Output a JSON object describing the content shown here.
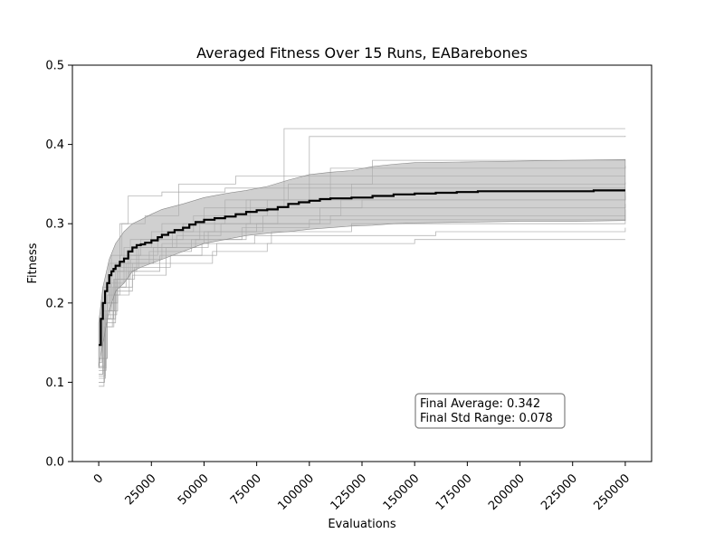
{
  "chart_data": {
    "type": "line",
    "title": "Averaged Fitness Over 15 Runs, EABarebones",
    "xlabel": "Evaluations",
    "ylabel": "Fitness",
    "xlim": [
      -12500,
      262500
    ],
    "ylim": [
      0.0,
      0.5
    ],
    "xticks": [
      0,
      25000,
      50000,
      75000,
      100000,
      125000,
      150000,
      175000,
      200000,
      225000,
      250000
    ],
    "xtick_labels": [
      "0",
      "25000",
      "50000",
      "75000",
      "100000",
      "125000",
      "150000",
      "175000",
      "200000",
      "225000",
      "250000"
    ],
    "yticks": [
      0.0,
      0.1,
      0.2,
      0.3,
      0.4,
      0.5
    ],
    "ytick_labels": [
      "0.0",
      "0.1",
      "0.2",
      "0.3",
      "0.4",
      "0.5"
    ],
    "grid": false,
    "colors": {
      "average": "#000000",
      "band": "#b0b0b0",
      "runs": "#9e9e9e"
    },
    "average": {
      "x": [
        0,
        1000,
        2000,
        3000,
        4000,
        5000,
        6000,
        7000,
        8000,
        10000,
        12000,
        14000,
        16000,
        18000,
        20000,
        22000,
        25000,
        28000,
        30000,
        33000,
        36000,
        40000,
        43000,
        46000,
        50000,
        55000,
        60000,
        65000,
        70000,
        75000,
        80000,
        85000,
        90000,
        95000,
        100000,
        105000,
        110000,
        120000,
        130000,
        140000,
        150000,
        160000,
        170000,
        180000,
        200000,
        220000,
        235000,
        250000
      ],
      "y": [
        0.147,
        0.18,
        0.2,
        0.215,
        0.225,
        0.235,
        0.24,
        0.243,
        0.247,
        0.252,
        0.256,
        0.265,
        0.27,
        0.273,
        0.274,
        0.276,
        0.279,
        0.283,
        0.286,
        0.289,
        0.292,
        0.295,
        0.299,
        0.302,
        0.305,
        0.307,
        0.309,
        0.312,
        0.315,
        0.317,
        0.318,
        0.321,
        0.325,
        0.327,
        0.329,
        0.331,
        0.332,
        0.333,
        0.335,
        0.337,
        0.338,
        0.339,
        0.34,
        0.341,
        0.341,
        0.341,
        0.342,
        0.342
      ]
    },
    "band": {
      "x": [
        0,
        2000,
        5000,
        8000,
        12000,
        16000,
        20000,
        25000,
        30000,
        40000,
        50000,
        60000,
        70000,
        80000,
        90000,
        100000,
        110000,
        120000,
        130000,
        140000,
        150000,
        175000,
        200000,
        225000,
        250000
      ],
      "upper": [
        0.175,
        0.22,
        0.255,
        0.275,
        0.29,
        0.3,
        0.305,
        0.312,
        0.318,
        0.325,
        0.333,
        0.338,
        0.342,
        0.347,
        0.355,
        0.362,
        0.365,
        0.367,
        0.372,
        0.375,
        0.377,
        0.378,
        0.379,
        0.38,
        0.381
      ],
      "lower": [
        0.118,
        0.15,
        0.19,
        0.215,
        0.225,
        0.24,
        0.245,
        0.25,
        0.255,
        0.265,
        0.275,
        0.28,
        0.285,
        0.288,
        0.29,
        0.293,
        0.295,
        0.297,
        0.298,
        0.3,
        0.301,
        0.302,
        0.303,
        0.303,
        0.304
      ]
    },
    "runs": [
      {
        "x": [
          0,
          3000,
          8000,
          15000,
          30000,
          50000,
          88000,
          250000
        ],
        "y": [
          0.12,
          0.2,
          0.25,
          0.28,
          0.3,
          0.32,
          0.42,
          0.42
        ]
      },
      {
        "x": [
          0,
          2000,
          6000,
          12000,
          25000,
          45000,
          70000,
          100000,
          250000
        ],
        "y": [
          0.11,
          0.19,
          0.24,
          0.27,
          0.29,
          0.31,
          0.33,
          0.41,
          0.411
        ]
      },
      {
        "x": [
          0,
          4000,
          10000,
          20000,
          40000,
          60000,
          90000,
          130000,
          250000
        ],
        "y": [
          0.13,
          0.21,
          0.26,
          0.28,
          0.3,
          0.33,
          0.35,
          0.38,
          0.38
        ]
      },
      {
        "x": [
          0,
          2500,
          7000,
          14000,
          28000,
          48000,
          72000,
          110000,
          250000
        ],
        "y": [
          0.1,
          0.18,
          0.23,
          0.26,
          0.28,
          0.3,
          0.33,
          0.37,
          0.373
        ]
      },
      {
        "x": [
          0,
          1500,
          5000,
          10000,
          22000,
          38000,
          65000,
          95000,
          250000
        ],
        "y": [
          0.125,
          0.2,
          0.25,
          0.3,
          0.31,
          0.35,
          0.36,
          0.36,
          0.36
        ]
      },
      {
        "x": [
          0,
          3500,
          9000,
          18000,
          35000,
          55000,
          80000,
          120000,
          250000
        ],
        "y": [
          0.115,
          0.19,
          0.24,
          0.27,
          0.29,
          0.31,
          0.33,
          0.35,
          0.352
        ]
      },
      {
        "x": [
          0,
          2000,
          6000,
          11000,
          14000,
          30000,
          60000,
          90000,
          250000
        ],
        "y": [
          0.12,
          0.22,
          0.26,
          0.3,
          0.335,
          0.34,
          0.345,
          0.345,
          0.345
        ]
      },
      {
        "x": [
          0,
          3000,
          8000,
          16000,
          32000,
          52000,
          78000,
          115000,
          250000
        ],
        "y": [
          0.108,
          0.18,
          0.22,
          0.25,
          0.27,
          0.29,
          0.31,
          0.33,
          0.34
        ]
      },
      {
        "x": [
          0,
          4000,
          9000,
          19000,
          37000,
          58000,
          85000,
          125000,
          250000
        ],
        "y": [
          0.13,
          0.2,
          0.245,
          0.27,
          0.285,
          0.3,
          0.32,
          0.33,
          0.335
        ]
      },
      {
        "x": [
          0,
          2500,
          6500,
          13000,
          26000,
          46000,
          70000,
          105000,
          250000
        ],
        "y": [
          0.095,
          0.17,
          0.22,
          0.25,
          0.27,
          0.28,
          0.3,
          0.32,
          0.325
        ]
      },
      {
        "x": [
          0,
          3000,
          7500,
          15000,
          30000,
          50000,
          75000,
          110000,
          250000
        ],
        "y": [
          0.12,
          0.19,
          0.23,
          0.255,
          0.275,
          0.29,
          0.3,
          0.31,
          0.318
        ]
      },
      {
        "x": [
          0,
          2000,
          5500,
          12000,
          24000,
          44000,
          68000,
          100000,
          250000
        ],
        "y": [
          0.11,
          0.18,
          0.225,
          0.25,
          0.265,
          0.28,
          0.295,
          0.305,
          0.31
        ]
      },
      {
        "x": [
          0,
          3500,
          8500,
          17000,
          34000,
          56000,
          82000,
          120000,
          250000
        ],
        "y": [
          0.118,
          0.185,
          0.23,
          0.245,
          0.26,
          0.275,
          0.29,
          0.3,
          0.305
        ]
      },
      {
        "x": [
          0,
          2800,
          7200,
          14500,
          29000,
          49000,
          74000,
          160000,
          250000
        ],
        "y": [
          0.1,
          0.17,
          0.21,
          0.24,
          0.26,
          0.275,
          0.285,
          0.29,
          0.295
        ]
      },
      {
        "x": [
          0,
          3200,
          8000,
          16000,
          32000,
          54000,
          80000,
          150000,
          250000
        ],
        "y": [
          0.105,
          0.175,
          0.215,
          0.235,
          0.25,
          0.265,
          0.275,
          0.28,
          0.28
        ]
      }
    ],
    "annotation": {
      "line1": "Final Average: 0.342",
      "line2": "Final Std Range: 0.078"
    }
  }
}
